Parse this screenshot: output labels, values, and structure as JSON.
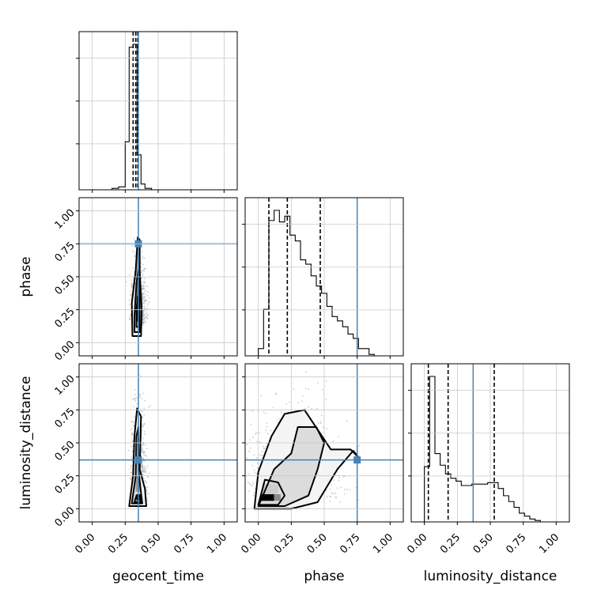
{
  "chart_data": {
    "type": "corner",
    "parameters": [
      "geocent_time",
      "phase",
      "luminosity_distance"
    ],
    "axis_labels": {
      "x": [
        "geocent_time",
        "phase",
        "luminosity_distance"
      ],
      "y": [
        "",
        "phase",
        "luminosity_distance"
      ]
    },
    "range": [
      -0.1,
      1.1
    ],
    "tick_labels": [
      "0.00",
      "0.25",
      "0.50",
      "0.75",
      "1.00"
    ],
    "tick_values": [
      0,
      0.25,
      0.5,
      0.75,
      1.0
    ],
    "grid": true,
    "truths": {
      "geocent_time": 0.35,
      "phase": 0.75,
      "luminosity_distance": 0.37
    },
    "quantiles": {
      "geocent_time": [
        0.31,
        0.33,
        0.345
      ],
      "phase": [
        0.08,
        0.22,
        0.47
      ],
      "luminosity_distance": [
        0.03,
        0.18,
        0.53
      ]
    },
    "histograms": {
      "geocent_time": {
        "edges": [
          0.15,
          0.2,
          0.25,
          0.28,
          0.31,
          0.34,
          0.37,
          0.4,
          0.45,
          0.55
        ],
        "counts": [
          0.01,
          0.02,
          0.33,
          0.98,
          1.0,
          0.24,
          0.04,
          0.01,
          0.0
        ]
      },
      "phase": {
        "edges": [
          0.0,
          0.04,
          0.08,
          0.12,
          0.16,
          0.2,
          0.24,
          0.28,
          0.32,
          0.36,
          0.4,
          0.44,
          0.48,
          0.52,
          0.56,
          0.6,
          0.64,
          0.68,
          0.72,
          0.76,
          0.8,
          0.84,
          0.88
        ],
        "counts": [
          0.05,
          0.32,
          0.93,
          1.0,
          0.92,
          0.96,
          0.83,
          0.79,
          0.66,
          0.63,
          0.55,
          0.48,
          0.43,
          0.34,
          0.27,
          0.24,
          0.2,
          0.15,
          0.12,
          0.05,
          0.05,
          0.01
        ]
      },
      "luminosity_distance": {
        "edges": [
          0.0,
          0.04,
          0.08,
          0.12,
          0.16,
          0.2,
          0.24,
          0.28,
          0.32,
          0.36,
          0.4,
          0.44,
          0.48,
          0.52,
          0.56,
          0.6,
          0.64,
          0.68,
          0.72,
          0.76,
          0.8,
          0.84,
          0.88,
          0.92
        ],
        "counts": [
          0.38,
          1.0,
          0.47,
          0.39,
          0.33,
          0.3,
          0.28,
          0.25,
          0.25,
          0.26,
          0.26,
          0.26,
          0.27,
          0.27,
          0.23,
          0.18,
          0.14,
          0.1,
          0.06,
          0.04,
          0.02,
          0.01,
          0.0
        ]
      }
    },
    "panels_2d": [
      {
        "x": "geocent_time",
        "y": "phase",
        "samples": {
          "x_mean": 0.35,
          "x_sd": 0.028,
          "y_mode": 0.15,
          "y_max": 0.82
        },
        "contours": [
          [
            [
              0.305,
              0.05
            ],
            [
              0.37,
              0.05
            ],
            [
              0.375,
              0.25
            ],
            [
              0.36,
              0.55
            ],
            [
              0.36,
              0.78
            ],
            [
              0.345,
              0.8
            ],
            [
              0.33,
              0.55
            ],
            [
              0.3,
              0.3
            ],
            [
              0.305,
              0.05
            ]
          ],
          [
            [
              0.32,
              0.08
            ],
            [
              0.36,
              0.08
            ],
            [
              0.36,
              0.3
            ],
            [
              0.35,
              0.55
            ],
            [
              0.335,
              0.45
            ],
            [
              0.32,
              0.2
            ],
            [
              0.32,
              0.08
            ]
          ],
          [
            [
              0.335,
              0.12
            ],
            [
              0.355,
              0.12
            ],
            [
              0.355,
              0.3
            ],
            [
              0.345,
              0.35
            ],
            [
              0.335,
              0.25
            ],
            [
              0.335,
              0.12
            ]
          ]
        ],
        "dense": [
          {
            "x": 0.34,
            "y": 0.16,
            "w": 0.025,
            "h": 0.14,
            "level": 0.95
          },
          {
            "x": 0.335,
            "y": 0.3,
            "w": 0.02,
            "h": 0.16,
            "level": 0.55
          },
          {
            "x": 0.33,
            "y": 0.48,
            "w": 0.018,
            "h": 0.2,
            "level": 0.3
          }
        ]
      },
      {
        "x": "geocent_time",
        "y": "luminosity_distance",
        "samples": {
          "x_mean": 0.35,
          "x_sd": 0.028,
          "y_mode": 0.06,
          "y_max": 1.05
        },
        "contours": [
          [
            [
              0.28,
              0.02
            ],
            [
              0.41,
              0.02
            ],
            [
              0.4,
              0.15
            ],
            [
              0.36,
              0.3
            ],
            [
              0.37,
              0.7
            ],
            [
              0.34,
              0.76
            ],
            [
              0.32,
              0.55
            ],
            [
              0.31,
              0.25
            ],
            [
              0.28,
              0.02
            ]
          ],
          [
            [
              0.3,
              0.04
            ],
            [
              0.38,
              0.04
            ],
            [
              0.37,
              0.12
            ],
            [
              0.35,
              0.3
            ],
            [
              0.35,
              0.62
            ],
            [
              0.335,
              0.55
            ],
            [
              0.33,
              0.25
            ],
            [
              0.3,
              0.04
            ]
          ],
          [
            [
              0.32,
              0.05
            ],
            [
              0.37,
              0.05
            ],
            [
              0.36,
              0.1
            ],
            [
              0.335,
              0.1
            ],
            [
              0.32,
              0.05
            ]
          ]
        ],
        "dense": [
          {
            "x": 0.335,
            "y": 0.06,
            "w": 0.035,
            "h": 0.05,
            "level": 1.0
          },
          {
            "x": 0.33,
            "y": 0.13,
            "w": 0.03,
            "h": 0.12,
            "level": 0.4
          }
        ]
      },
      {
        "x": "phase",
        "y": "luminosity_distance",
        "samples": {
          "x_mean": 0.25,
          "x_sd": 0.18,
          "y_mode": 0.06,
          "y_max": 1.05
        },
        "contours": [
          [
            [
              -0.03,
              0.0
            ],
            [
              0.25,
              0.0
            ],
            [
              0.45,
              0.05
            ],
            [
              0.6,
              0.3
            ],
            [
              0.72,
              0.44
            ],
            [
              0.77,
              0.38
            ],
            [
              0.7,
              0.45
            ],
            [
              0.55,
              0.45
            ],
            [
              0.45,
              0.6
            ],
            [
              0.35,
              0.75
            ],
            [
              0.2,
              0.72
            ],
            [
              0.1,
              0.55
            ],
            [
              0.0,
              0.28
            ],
            [
              -0.03,
              0.0
            ]
          ],
          [
            [
              0.0,
              0.02
            ],
            [
              0.2,
              0.02
            ],
            [
              0.38,
              0.1
            ],
            [
              0.45,
              0.3
            ],
            [
              0.5,
              0.5
            ],
            [
              0.44,
              0.62
            ],
            [
              0.3,
              0.62
            ],
            [
              0.25,
              0.42
            ],
            [
              0.12,
              0.3
            ],
            [
              0.0,
              0.02
            ]
          ],
          [
            [
              0.0,
              0.03
            ],
            [
              0.15,
              0.03
            ],
            [
              0.2,
              0.1
            ],
            [
              0.15,
              0.2
            ],
            [
              0.05,
              0.22
            ],
            [
              0.0,
              0.03
            ]
          ]
        ],
        "dense": [
          {
            "x": 0.02,
            "y": 0.06,
            "w": 0.1,
            "h": 0.05,
            "level": 1.0
          },
          {
            "x": 0.12,
            "y": 0.06,
            "w": 0.05,
            "h": 0.05,
            "level": 0.45
          },
          {
            "x": 0.03,
            "y": 0.11,
            "w": 0.12,
            "h": 0.08,
            "level": 0.2
          }
        ]
      }
    ]
  }
}
